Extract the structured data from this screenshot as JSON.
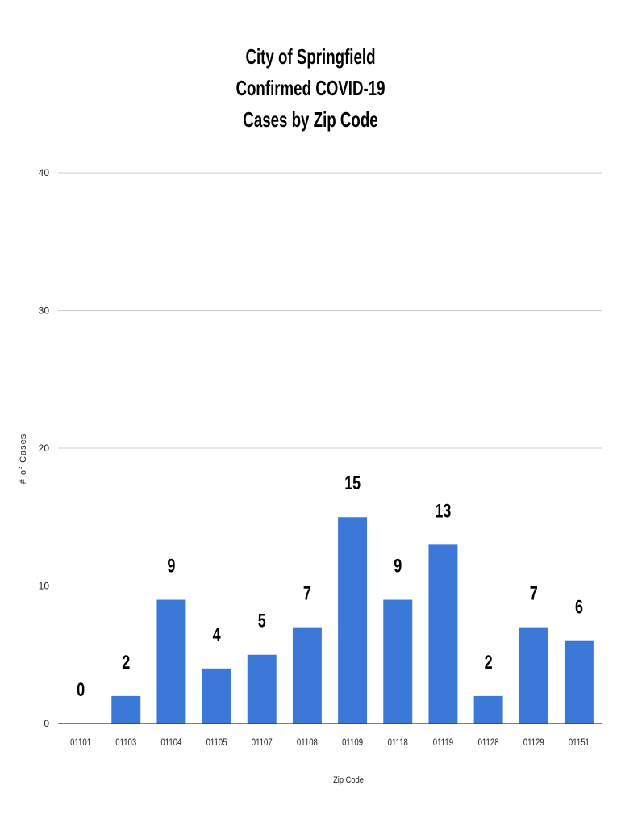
{
  "chart_data": {
    "type": "bar",
    "title": [
      "City of Springfield",
      "Confirmed COVID-19",
      "Cases by Zip Code"
    ],
    "xlabel": "Zip Code",
    "ylabel": "# of Cases",
    "categories": [
      "01101",
      "01103",
      "01104",
      "01105",
      "01107",
      "01108",
      "01109",
      "01118",
      "01119",
      "01128",
      "01129",
      "01151"
    ],
    "values": [
      0,
      2,
      9,
      4,
      5,
      7,
      15,
      9,
      13,
      2,
      7,
      6
    ],
    "ylim": [
      0,
      40
    ],
    "yticks": [
      0,
      10,
      20,
      30,
      40
    ],
    "grid": true,
    "legend": "none",
    "colors": {
      "bar": "#3c78d8"
    }
  }
}
